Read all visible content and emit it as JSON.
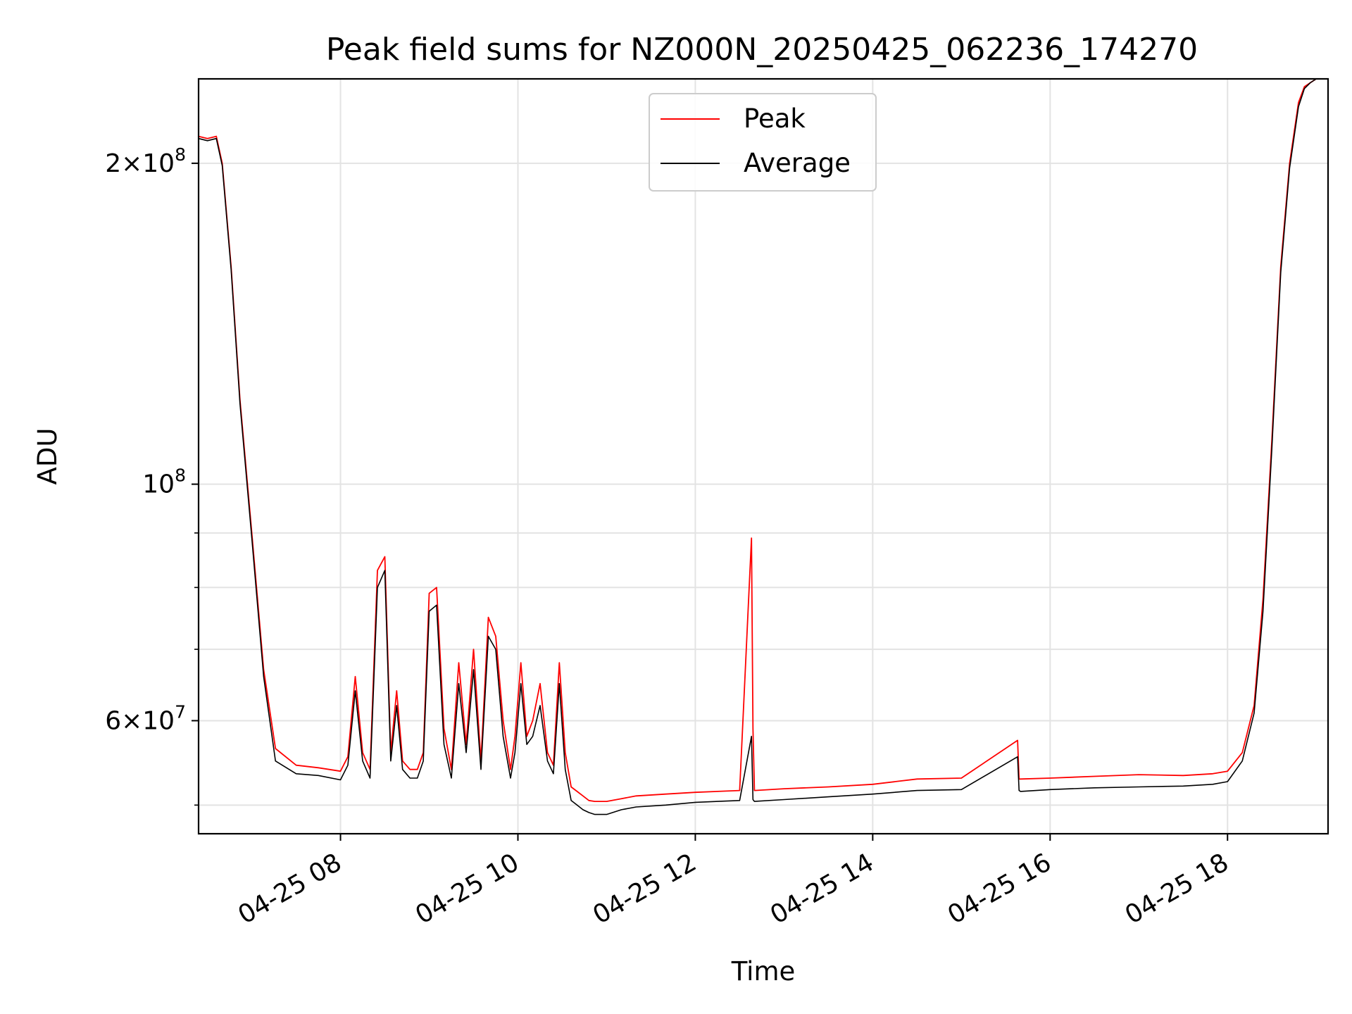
{
  "chart_data": {
    "type": "line",
    "title": "Peak field sums for NZ000N_20250425_062236_174270",
    "xlabel": "Time",
    "ylabel": "ADU",
    "yscale": "log",
    "ylim": [
      47000000,
      240000000
    ],
    "xlim": [
      "2025-04-25 06:24",
      "2025-04-25 19:08"
    ],
    "grid": true,
    "legend_position": "upper center",
    "x_ticks": [
      {
        "value": "2025-04-25 08:00",
        "label": "04-25 08"
      },
      {
        "value": "2025-04-25 10:00",
        "label": "04-25 10"
      },
      {
        "value": "2025-04-25 12:00",
        "label": "04-25 12"
      },
      {
        "value": "2025-04-25 14:00",
        "label": "04-25 14"
      },
      {
        "value": "2025-04-25 16:00",
        "label": "04-25 16"
      },
      {
        "value": "2025-04-25 18:00",
        "label": "04-25 18"
      }
    ],
    "y_major_ticks": [
      {
        "value": 60000000,
        "mantissa": "6",
        "base": "10",
        "exponent": "7"
      },
      {
        "value": 100000000,
        "mantissa": "",
        "base": "10",
        "exponent": "8"
      },
      {
        "value": 200000000,
        "mantissa": "2",
        "base": "10",
        "exponent": "8"
      }
    ],
    "y_minor_ticks": [
      50000000,
      70000000,
      80000000,
      90000000
    ],
    "series": [
      {
        "name": "Peak",
        "color": "#ff0000",
        "x": [
          "2025-04-25 06:24",
          "2025-04-25 06:30",
          "2025-04-25 06:36",
          "2025-04-25 06:40",
          "2025-04-25 06:46",
          "2025-04-25 06:52",
          "2025-04-25 07:00",
          "2025-04-25 07:08",
          "2025-04-25 07:16",
          "2025-04-25 07:30",
          "2025-04-25 07:45",
          "2025-04-25 08:00",
          "2025-04-25 08:05",
          "2025-04-25 08:10",
          "2025-04-25 08:15",
          "2025-04-25 08:20",
          "2025-04-25 08:25",
          "2025-04-25 08:30",
          "2025-04-25 08:34",
          "2025-04-25 08:38",
          "2025-04-25 08:42",
          "2025-04-25 08:47",
          "2025-04-25 08:52",
          "2025-04-25 08:56",
          "2025-04-25 09:00",
          "2025-04-25 09:05",
          "2025-04-25 09:10",
          "2025-04-25 09:15",
          "2025-04-25 09:20",
          "2025-04-25 09:25",
          "2025-04-25 09:30",
          "2025-04-25 09:35",
          "2025-04-25 09:40",
          "2025-04-25 09:45",
          "2025-04-25 09:50",
          "2025-04-25 09:55",
          "2025-04-25 09:58",
          "2025-04-25 10:02",
          "2025-04-25 10:06",
          "2025-04-25 10:10",
          "2025-04-25 10:15",
          "2025-04-25 10:20",
          "2025-04-25 10:24",
          "2025-04-25 10:28",
          "2025-04-25 10:32",
          "2025-04-25 10:36",
          "2025-04-25 10:40",
          "2025-04-25 10:44",
          "2025-04-25 10:48",
          "2025-04-25 10:52",
          "2025-04-25 11:00",
          "2025-04-25 11:10",
          "2025-04-25 11:20",
          "2025-04-25 11:40",
          "2025-04-25 12:00",
          "2025-04-25 12:30",
          "2025-04-25 12:38",
          "2025-04-25 12:39",
          "2025-04-25 12:40",
          "2025-04-25 13:00",
          "2025-04-25 13:30",
          "2025-04-25 14:00",
          "2025-04-25 14:30",
          "2025-04-25 15:00",
          "2025-04-25 15:38",
          "2025-04-25 15:39",
          "2025-04-25 15:40",
          "2025-04-25 16:00",
          "2025-04-25 16:30",
          "2025-04-25 17:00",
          "2025-04-25 17:30",
          "2025-04-25 17:50",
          "2025-04-25 18:00",
          "2025-04-25 18:10",
          "2025-04-25 18:18",
          "2025-04-25 18:24",
          "2025-04-25 18:30",
          "2025-04-25 18:36",
          "2025-04-25 18:42",
          "2025-04-25 18:48",
          "2025-04-25 18:52",
          "2025-04-25 18:56",
          "2025-04-25 19:00",
          "2025-04-25 19:08"
        ],
        "y": [
          212000000,
          211000000,
          212000000,
          200000000,
          160000000,
          120000000,
          90000000,
          67000000,
          56500000,
          54500000,
          54200000,
          53800000,
          55500000,
          66000000,
          56000000,
          54000000,
          83000000,
          85500000,
          56000000,
          64000000,
          55000000,
          54000000,
          54000000,
          56000000,
          79000000,
          80000000,
          59000000,
          54000000,
          68000000,
          57000000,
          70000000,
          55000000,
          75000000,
          72000000,
          60000000,
          54000000,
          58000000,
          68000000,
          58000000,
          60000000,
          65000000,
          56000000,
          54500000,
          68000000,
          56000000,
          52000000,
          51500000,
          51000000,
          50500000,
          50400000,
          50400000,
          50700000,
          51000000,
          51200000,
          51400000,
          51600000,
          89000000,
          59000000,
          51600000,
          51800000,
          52000000,
          52300000,
          52900000,
          53000000,
          57500000,
          52900000,
          52900000,
          53000000,
          53200000,
          53400000,
          53300000,
          53500000,
          53800000,
          56000000,
          62000000,
          78000000,
          110000000,
          160000000,
          200000000,
          228000000,
          236000000,
          238000000,
          240000000,
          240000000
        ]
      },
      {
        "name": "Average",
        "color": "#000000",
        "x": [
          "2025-04-25 06:24",
          "2025-04-25 06:30",
          "2025-04-25 06:36",
          "2025-04-25 06:40",
          "2025-04-25 06:46",
          "2025-04-25 06:52",
          "2025-04-25 07:00",
          "2025-04-25 07:08",
          "2025-04-25 07:16",
          "2025-04-25 07:30",
          "2025-04-25 07:45",
          "2025-04-25 08:00",
          "2025-04-25 08:05",
          "2025-04-25 08:10",
          "2025-04-25 08:15",
          "2025-04-25 08:20",
          "2025-04-25 08:25",
          "2025-04-25 08:30",
          "2025-04-25 08:34",
          "2025-04-25 08:38",
          "2025-04-25 08:42",
          "2025-04-25 08:47",
          "2025-04-25 08:52",
          "2025-04-25 08:56",
          "2025-04-25 09:00",
          "2025-04-25 09:05",
          "2025-04-25 09:10",
          "2025-04-25 09:15",
          "2025-04-25 09:20",
          "2025-04-25 09:25",
          "2025-04-25 09:30",
          "2025-04-25 09:35",
          "2025-04-25 09:40",
          "2025-04-25 09:45",
          "2025-04-25 09:50",
          "2025-04-25 09:55",
          "2025-04-25 09:58",
          "2025-04-25 10:02",
          "2025-04-25 10:06",
          "2025-04-25 10:10",
          "2025-04-25 10:15",
          "2025-04-25 10:20",
          "2025-04-25 10:24",
          "2025-04-25 10:28",
          "2025-04-25 10:32",
          "2025-04-25 10:36",
          "2025-04-25 10:40",
          "2025-04-25 10:44",
          "2025-04-25 10:48",
          "2025-04-25 10:52",
          "2025-04-25 11:00",
          "2025-04-25 11:10",
          "2025-04-25 11:20",
          "2025-04-25 11:40",
          "2025-04-25 12:00",
          "2025-04-25 12:30",
          "2025-04-25 12:38",
          "2025-04-25 12:39",
          "2025-04-25 12:40",
          "2025-04-25 13:00",
          "2025-04-25 13:30",
          "2025-04-25 14:00",
          "2025-04-25 14:30",
          "2025-04-25 15:00",
          "2025-04-25 15:38",
          "2025-04-25 15:39",
          "2025-04-25 15:40",
          "2025-04-25 16:00",
          "2025-04-25 16:30",
          "2025-04-25 17:00",
          "2025-04-25 17:30",
          "2025-04-25 17:50",
          "2025-04-25 18:00",
          "2025-04-25 18:10",
          "2025-04-25 18:18",
          "2025-04-25 18:24",
          "2025-04-25 18:30",
          "2025-04-25 18:36",
          "2025-04-25 18:42",
          "2025-04-25 18:48",
          "2025-04-25 18:52",
          "2025-04-25 18:56",
          "2025-04-25 19:00",
          "2025-04-25 19:08"
        ],
        "y": [
          211000000,
          210000000,
          211000000,
          199000000,
          159000000,
          119000000,
          89000000,
          66000000,
          55000000,
          53500000,
          53300000,
          52800000,
          54500000,
          64000000,
          55000000,
          53000000,
          80000000,
          83000000,
          55000000,
          62000000,
          54000000,
          53000000,
          53000000,
          55000000,
          76000000,
          77000000,
          57000000,
          53000000,
          65000000,
          56000000,
          67000000,
          54000000,
          72000000,
          70000000,
          58000000,
          53000000,
          56000000,
          65000000,
          57000000,
          58000000,
          62000000,
          55000000,
          53500000,
          65000000,
          54000000,
          50500000,
          50000000,
          49500000,
          49200000,
          49000000,
          49000000,
          49500000,
          49800000,
          50000000,
          50300000,
          50500000,
          58000000,
          50600000,
          50400000,
          50600000,
          50900000,
          51200000,
          51600000,
          51700000,
          55500000,
          51600000,
          51500000,
          51700000,
          51900000,
          52000000,
          52100000,
          52300000,
          52600000,
          55000000,
          61000000,
          76000000,
          108000000,
          158000000,
          198000000,
          226000000,
          235000000,
          238000000,
          240000000,
          240000000
        ]
      }
    ]
  }
}
